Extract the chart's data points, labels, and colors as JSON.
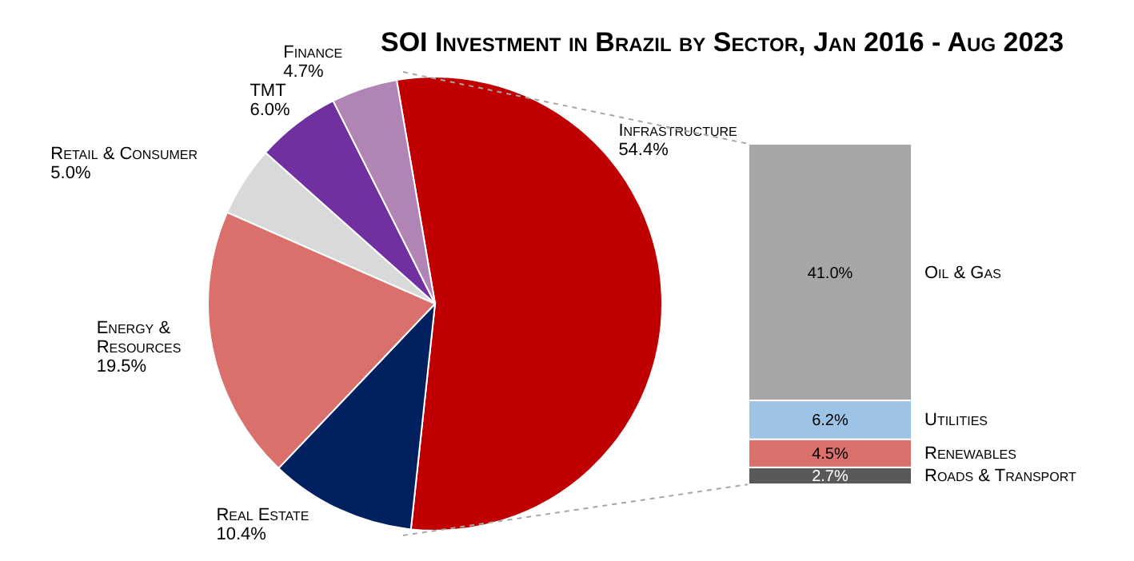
{
  "chart_data": [
    {
      "type": "pie",
      "title": "SOI Investment in Brazil by Sector, Jan 2016 - Aug 2023",
      "categories": [
        "Infrastructure",
        "Real Estate",
        "Energy & Resources",
        "Retail & Consumer",
        "TMT",
        "Finance"
      ],
      "values": [
        54.4,
        10.4,
        19.5,
        5.0,
        6.0,
        4.7
      ],
      "value_labels": [
        "54.4%",
        "10.4%",
        "19.5%",
        "5.0%",
        "6.0%",
        "4.7%"
      ],
      "colors": [
        "#c00000",
        "#002060",
        "#d9706c",
        "#d9d9d9",
        "#7030a0",
        "#b084b4"
      ]
    },
    {
      "type": "bar",
      "stacked": true,
      "categories": [
        null
      ],
      "series": [
        {
          "name": "Roads & Transport",
          "color": "#595959",
          "values": [
            2.7
          ],
          "value_labels": [
            "2.7%"
          ]
        },
        {
          "name": "Renewables",
          "color": "#d9706c",
          "values": [
            4.5
          ],
          "value_labels": [
            "4.5%"
          ]
        },
        {
          "name": "Utilities",
          "color": "#9dc3e6",
          "values": [
            6.2
          ],
          "value_labels": [
            "6.2%"
          ]
        },
        {
          "name": "Oil & Gas",
          "color": "#a6a6a6",
          "values": [
            41.0
          ],
          "value_labels": [
            "41.0%"
          ]
        }
      ]
    }
  ]
}
